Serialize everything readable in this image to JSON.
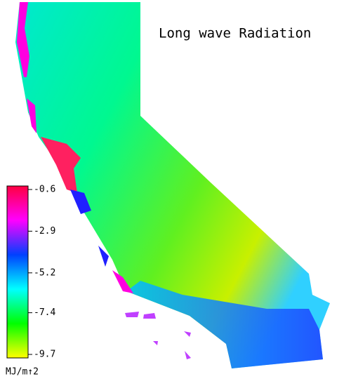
{
  "title": "Long wave Radiation",
  "colorbar": {
    "unit": "MJ/m↑2",
    "lim": [
      -9.7,
      -0.6
    ],
    "ticks": [
      -0.6,
      -2.9,
      -5.2,
      -7.4,
      -9.7
    ],
    "colors": [
      "#ffff00",
      "#00ff00",
      "#00ffff",
      "#0040ff",
      "#ff00ff",
      "#ff0040"
    ]
  }
}
